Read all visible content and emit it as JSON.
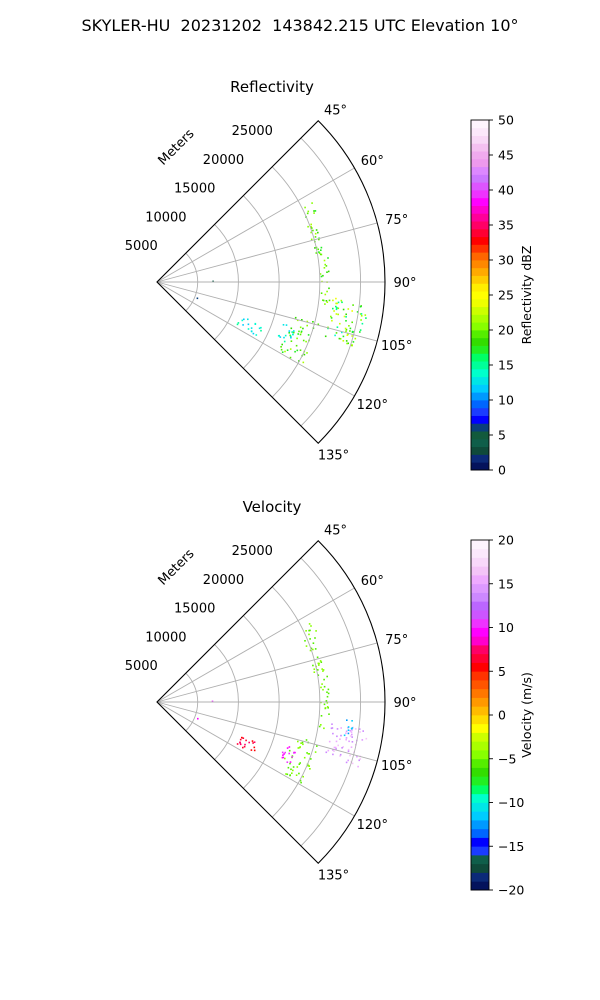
{
  "figure": {
    "suptitle": "SKYLER-HU  20231202  143842.215 UTC Elevation 10°"
  },
  "chart_data": [
    {
      "type": "polar-sector",
      "title": "Reflectivity",
      "radial_label": "Meters",
      "radial_ticks": [
        5000,
        10000,
        15000,
        20000,
        25000
      ],
      "radial_tick_labels": [
        "5000",
        "10000",
        "15000",
        "20000",
        "25000"
      ],
      "rmax": 28000,
      "azimuth_range": [
        45,
        135
      ],
      "azimuth_ticks": [
        45,
        60,
        75,
        90,
        105,
        120,
        135
      ],
      "azimuth_tick_labels": [
        "45°",
        "60°",
        "75°",
        "90°",
        "105°",
        "120°",
        "135°"
      ],
      "grid": true,
      "colorbar": {
        "label": "Reflectivity dBZ",
        "range": [
          0,
          50
        ],
        "ticks": [
          0,
          5,
          10,
          15,
          20,
          25,
          30,
          35,
          40,
          45,
          50
        ],
        "tick_labels": [
          "0",
          "5",
          "10",
          "15",
          "20",
          "25",
          "30",
          "35",
          "40",
          "45",
          "50"
        ]
      },
      "echoes": [
        {
          "region": "arc-north",
          "az_range": [
            62,
            66
          ],
          "r_range": [
            20000,
            21500
          ],
          "value_range": [
            17,
            22
          ],
          "density": 0.5
        },
        {
          "region": "arc-north-mid",
          "az_range": [
            66,
            80
          ],
          "r_range": [
            19500,
            21000
          ],
          "value_range": [
            17,
            22
          ],
          "density": 0.5
        },
        {
          "region": "arc-east",
          "az_range": [
            80,
            100
          ],
          "r_range": [
            20000,
            21200
          ],
          "value_range": [
            17,
            22
          ],
          "density": 0.45
        },
        {
          "region": "main-cell",
          "az_range": [
            95,
            108
          ],
          "r_range": [
            21500,
            26000
          ],
          "value_range": [
            14,
            24
          ],
          "density": 0.55
        },
        {
          "region": "arc-south",
          "az_range": [
            104,
            120
          ],
          "r_range": [
            17000,
            20500
          ],
          "value_range": [
            17,
            22
          ],
          "density": 0.35
        },
        {
          "region": "south-cell",
          "az_range": [
            108,
            115
          ],
          "r_range": [
            16000,
            18000
          ],
          "value_range": [
            11,
            16
          ],
          "density": 0.5
        },
        {
          "region": "far-south",
          "az_range": [
            112,
            118
          ],
          "r_range": [
            11000,
            14000
          ],
          "value_range": [
            11,
            15
          ],
          "density": 0.45
        },
        {
          "region": "near-speckle",
          "az_range": [
            88,
            90
          ],
          "r_range": [
            6500,
            6800
          ],
          "value_range": [
            3,
            5
          ],
          "density": 0.4
        },
        {
          "region": "near-speckle-2",
          "az_range": [
            110,
            112
          ],
          "r_range": [
            5000,
            5300
          ],
          "value_range": [
            5,
            8
          ],
          "density": 0.4
        }
      ]
    },
    {
      "type": "polar-sector",
      "title": "Velocity",
      "radial_label": "Meters",
      "radial_ticks": [
        5000,
        10000,
        15000,
        20000,
        25000
      ],
      "radial_tick_labels": [
        "5000",
        "10000",
        "15000",
        "20000",
        "25000"
      ],
      "rmax": 28000,
      "azimuth_range": [
        45,
        135
      ],
      "azimuth_ticks": [
        45,
        60,
        75,
        90,
        105,
        120,
        135
      ],
      "azimuth_tick_labels": [
        "45°",
        "60°",
        "75°",
        "90°",
        "105°",
        "120°",
        "135°"
      ],
      "grid": true,
      "colorbar": {
        "label": "Velocity (m/s)",
        "range": [
          -20,
          20
        ],
        "ticks": [
          -20,
          -15,
          -10,
          -5,
          0,
          5,
          10,
          15,
          20
        ],
        "tick_labels": [
          "−20",
          "−15",
          "−10",
          "−5",
          "0",
          "5",
          "10",
          "15",
          "20"
        ]
      },
      "echoes": [
        {
          "region": "arc-north",
          "az_range": [
            62,
            66
          ],
          "r_range": [
            20000,
            21500
          ],
          "value_range": [
            -6,
            -4
          ],
          "density": 0.5
        },
        {
          "region": "arc-north-mid",
          "az_range": [
            66,
            80
          ],
          "r_range": [
            19500,
            21000
          ],
          "value_range": [
            -6,
            -4
          ],
          "density": 0.5
        },
        {
          "region": "arc-east",
          "az_range": [
            80,
            100
          ],
          "r_range": [
            20000,
            21200
          ],
          "value_range": [
            -6,
            -4
          ],
          "density": 0.45
        },
        {
          "region": "main-cell",
          "az_range": [
            97,
            108
          ],
          "r_range": [
            21500,
            26000
          ],
          "value_range": [
            13,
            17
          ],
          "density": 0.55
        },
        {
          "region": "main-cell-inbound",
          "az_range": [
            95,
            100
          ],
          "r_range": [
            23000,
            24500
          ],
          "value_range": [
            -13,
            -11
          ],
          "density": 0.5
        },
        {
          "region": "arc-south",
          "az_range": [
            104,
            120
          ],
          "r_range": [
            17000,
            20500
          ],
          "value_range": [
            -6,
            -4
          ],
          "density": 0.35
        },
        {
          "region": "south-cell",
          "az_range": [
            108,
            115
          ],
          "r_range": [
            16000,
            18000
          ],
          "value_range": [
            9,
            11
          ],
          "density": 0.5
        },
        {
          "region": "far-south",
          "az_range": [
            112,
            118
          ],
          "r_range": [
            11000,
            14000
          ],
          "value_range": [
            5,
            8
          ],
          "density": 0.45
        },
        {
          "region": "near-speckle",
          "az_range": [
            88,
            90
          ],
          "r_range": [
            6500,
            6800
          ],
          "value_range": [
            9,
            11
          ],
          "density": 0.4
        },
        {
          "region": "near-speckle-2",
          "az_range": [
            110,
            112
          ],
          "r_range": [
            5000,
            5300
          ],
          "value_range": [
            9,
            11
          ],
          "density": 0.4
        }
      ]
    }
  ]
}
